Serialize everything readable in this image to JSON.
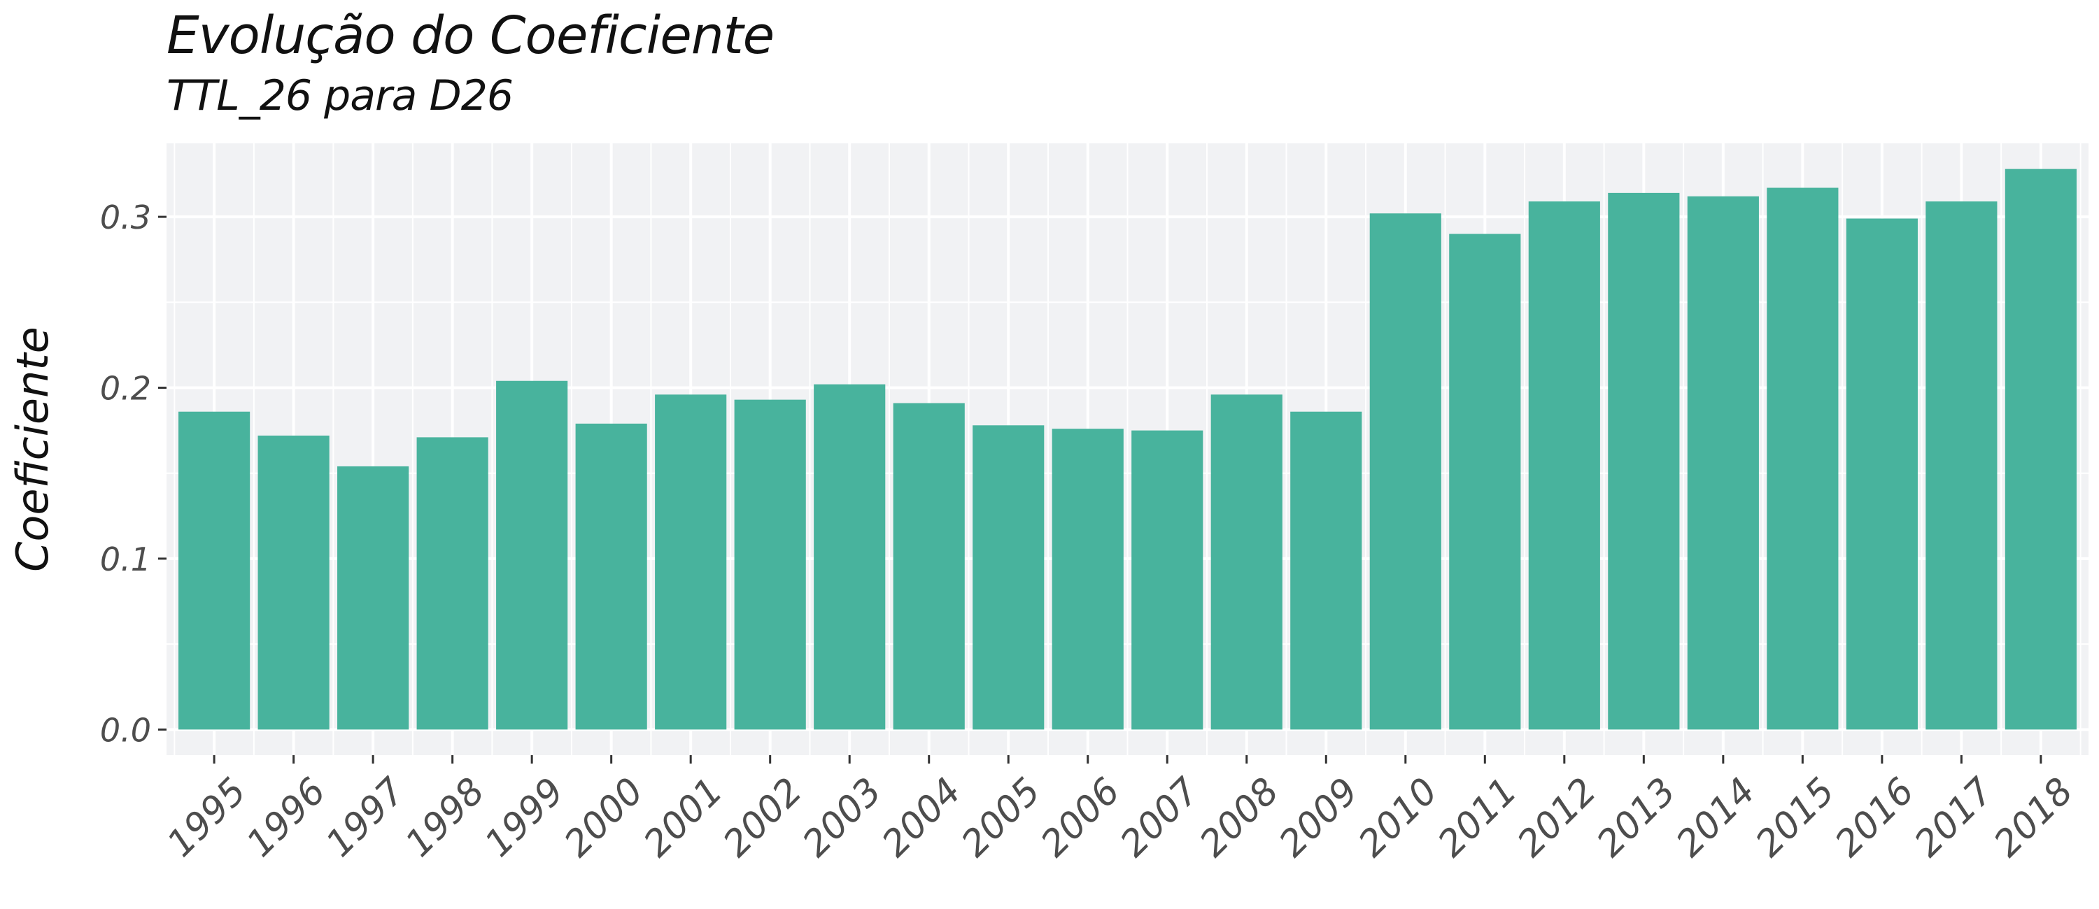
{
  "chart_data": {
    "type": "bar",
    "title": "Evolução do Coeficiente",
    "subtitle": "TTL_26 para D26",
    "xlabel": "",
    "ylabel": "Coeficiente",
    "categories": [
      "1995",
      "1996",
      "1997",
      "1998",
      "1999",
      "2000",
      "2001",
      "2002",
      "2003",
      "2004",
      "2005",
      "2006",
      "2007",
      "2008",
      "2009",
      "2010",
      "2011",
      "2012",
      "2013",
      "2014",
      "2015",
      "2016",
      "2017",
      "2018"
    ],
    "values": [
      0.186,
      0.172,
      0.154,
      0.171,
      0.204,
      0.179,
      0.196,
      0.193,
      0.202,
      0.191,
      0.178,
      0.176,
      0.175,
      0.196,
      0.186,
      0.302,
      0.29,
      0.309,
      0.314,
      0.312,
      0.317,
      0.299,
      0.309,
      0.328
    ],
    "y_ticks": [
      "0.0",
      "0.1",
      "0.2",
      "0.3"
    ],
    "ylim": [
      -0.015,
      0.343
    ],
    "grid": true,
    "legend": "none",
    "colors": {
      "bar": "#48b39d",
      "panel": "#f1f2f4",
      "grid": "#ffffff",
      "tick_label": "#4d4d4d",
      "text": "#111111"
    }
  }
}
